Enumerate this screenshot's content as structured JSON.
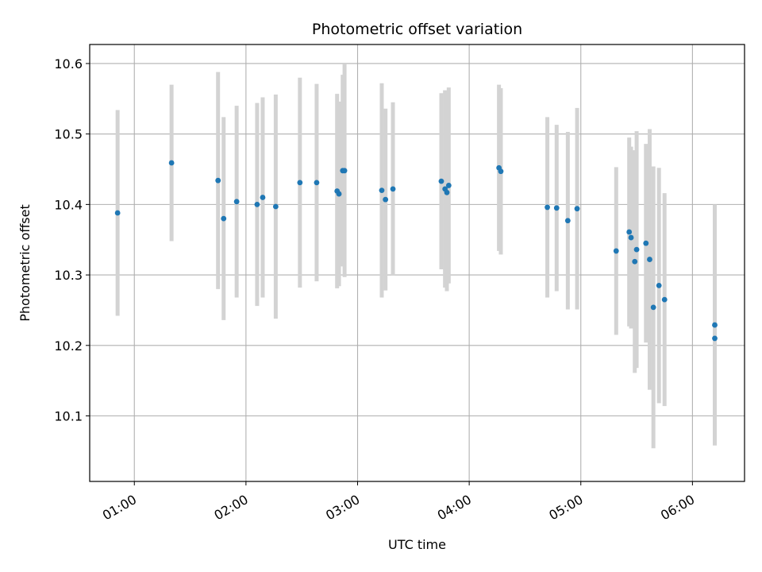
{
  "chart_data": {
    "type": "scatter",
    "title": "Photometric offset variation",
    "xlabel": "UTC time",
    "ylabel": "Photometric offset",
    "x_unit": "hours UTC",
    "xlim": [
      "00:36",
      "06:28"
    ],
    "ylim": [
      10.007,
      10.627
    ],
    "x_ticks": [
      "01:00",
      "02:00",
      "03:00",
      "04:00",
      "05:00",
      "06:00"
    ],
    "y_ticks": [
      "10.1",
      "10.2",
      "10.3",
      "10.4",
      "10.5",
      "10.6"
    ],
    "grid": true,
    "point_color": "#1f77b4",
    "errorbar_color": "#d3d3d3",
    "series": [
      {
        "points": [
          {
            "x": "00:51",
            "y": 10.388,
            "err": 0.146
          },
          {
            "x": "01:20",
            "y": 10.459,
            "err": 0.111
          },
          {
            "x": "01:45",
            "y": 10.434,
            "err": 0.154
          },
          {
            "x": "01:48",
            "y": 10.38,
            "err": 0.144
          },
          {
            "x": "01:55",
            "y": 10.404,
            "err": 0.136
          },
          {
            "x": "02:06",
            "y": 10.4,
            "err": 0.144
          },
          {
            "x": "02:09",
            "y": 10.41,
            "err": 0.142
          },
          {
            "x": "02:16",
            "y": 10.397,
            "err": 0.159
          },
          {
            "x": "02:29",
            "y": 10.431,
            "err": 0.149
          },
          {
            "x": "02:38",
            "y": 10.431,
            "err": 0.14
          },
          {
            "x": "02:49",
            "y": 10.419,
            "err": 0.138
          },
          {
            "x": "02:50",
            "y": 10.415,
            "err": 0.131
          },
          {
            "x": "02:52",
            "y": 10.448,
            "err": 0.136
          },
          {
            "x": "02:53",
            "y": 10.448,
            "err": 0.151
          },
          {
            "x": "03:13",
            "y": 10.42,
            "err": 0.152
          },
          {
            "x": "03:15",
            "y": 10.407,
            "err": 0.129
          },
          {
            "x": "03:19",
            "y": 10.422,
            "err": 0.123
          },
          {
            "x": "03:45",
            "y": 10.433,
            "err": 0.125
          },
          {
            "x": "03:47",
            "y": 10.422,
            "err": 0.14
          },
          {
            "x": "03:48",
            "y": 10.417,
            "err": 0.14
          },
          {
            "x": "03:49",
            "y": 10.427,
            "err": 0.139
          },
          {
            "x": "04:16",
            "y": 10.452,
            "err": 0.118
          },
          {
            "x": "04:17",
            "y": 10.447,
            "err": 0.118
          },
          {
            "x": "04:42",
            "y": 10.396,
            "err": 0.128
          },
          {
            "x": "04:47",
            "y": 10.395,
            "err": 0.118
          },
          {
            "x": "04:53",
            "y": 10.377,
            "err": 0.126
          },
          {
            "x": "04:58",
            "y": 10.394,
            "err": 0.143
          },
          {
            "x": "05:19",
            "y": 10.334,
            "err": 0.119
          },
          {
            "x": "05:26",
            "y": 10.361,
            "err": 0.134
          },
          {
            "x": "05:27",
            "y": 10.353,
            "err": 0.129
          },
          {
            "x": "05:29",
            "y": 10.319,
            "err": 0.158
          },
          {
            "x": "05:30",
            "y": 10.336,
            "err": 0.168
          },
          {
            "x": "05:35",
            "y": 10.345,
            "err": 0.141
          },
          {
            "x": "05:37",
            "y": 10.322,
            "err": 0.185
          },
          {
            "x": "05:39",
            "y": 10.254,
            "err": 0.2
          },
          {
            "x": "05:42",
            "y": 10.285,
            "err": 0.167
          },
          {
            "x": "05:45",
            "y": 10.265,
            "err": 0.151
          },
          {
            "x": "06:12",
            "y": 10.229,
            "err": 0.171
          },
          {
            "x": "06:12",
            "y": 10.21,
            "err": 0.151
          }
        ]
      }
    ]
  }
}
